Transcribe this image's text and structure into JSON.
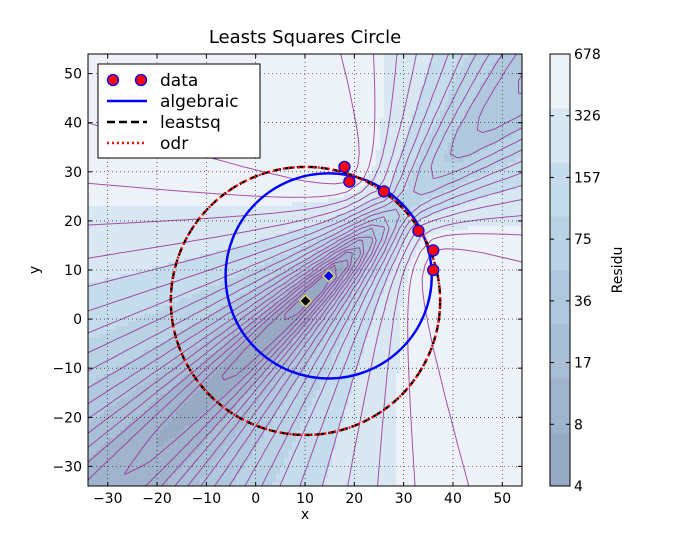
{
  "chart_data": {
    "type": "scatter",
    "title": "Leasts Squares Circle",
    "xlabel": "x",
    "ylabel": "y",
    "xlim": [
      -34,
      54
    ],
    "ylim": [
      -34,
      54
    ],
    "grid": true,
    "legend_placement": "top-left",
    "x_ticks": [
      -30,
      -20,
      -10,
      0,
      10,
      20,
      30,
      40,
      50
    ],
    "y_ticks": [
      -30,
      -20,
      -10,
      0,
      10,
      20,
      30,
      40,
      50
    ],
    "series": [
      {
        "name": "data",
        "kind": "points",
        "points": [
          [
            36,
            14
          ],
          [
            36,
            10
          ],
          [
            19,
            28
          ],
          [
            18,
            31
          ],
          [
            33,
            18
          ],
          [
            26,
            26
          ]
        ],
        "color": "#ff0000",
        "edge_color": "#0000ff"
      },
      {
        "name": "algebraic",
        "kind": "circle",
        "center": [
          14.8,
          8.8
        ],
        "radius": 20.9,
        "color": "#0000ff",
        "style": "solid"
      },
      {
        "name": "leastsq",
        "kind": "circle",
        "center": [
          10.1,
          3.7
        ],
        "radius": 27.3,
        "color": "#000000",
        "style": "dashed"
      },
      {
        "name": "odr",
        "kind": "circle",
        "center": [
          10.1,
          3.7
        ],
        "radius": 27.3,
        "color": "#ff0000",
        "style": "dashdot"
      }
    ],
    "center_markers": [
      {
        "x": 14.8,
        "y": 8.8,
        "color": "#0000ff"
      },
      {
        "x": 10.1,
        "y": 3.7,
        "color": "#000000"
      }
    ],
    "colorbar": {
      "label": "Residu",
      "ticks": [
        "4",
        "8",
        "17",
        "36",
        "75",
        "157",
        "326",
        "678"
      ],
      "contour_color": "#993399",
      "level_colors": [
        "#98a9c3",
        "#a0b3cd",
        "#a8bfd5",
        "#b0c8dd",
        "#b9d3e5",
        "#c5dcec",
        "#d8e7f2",
        "#edf2f9"
      ]
    }
  }
}
